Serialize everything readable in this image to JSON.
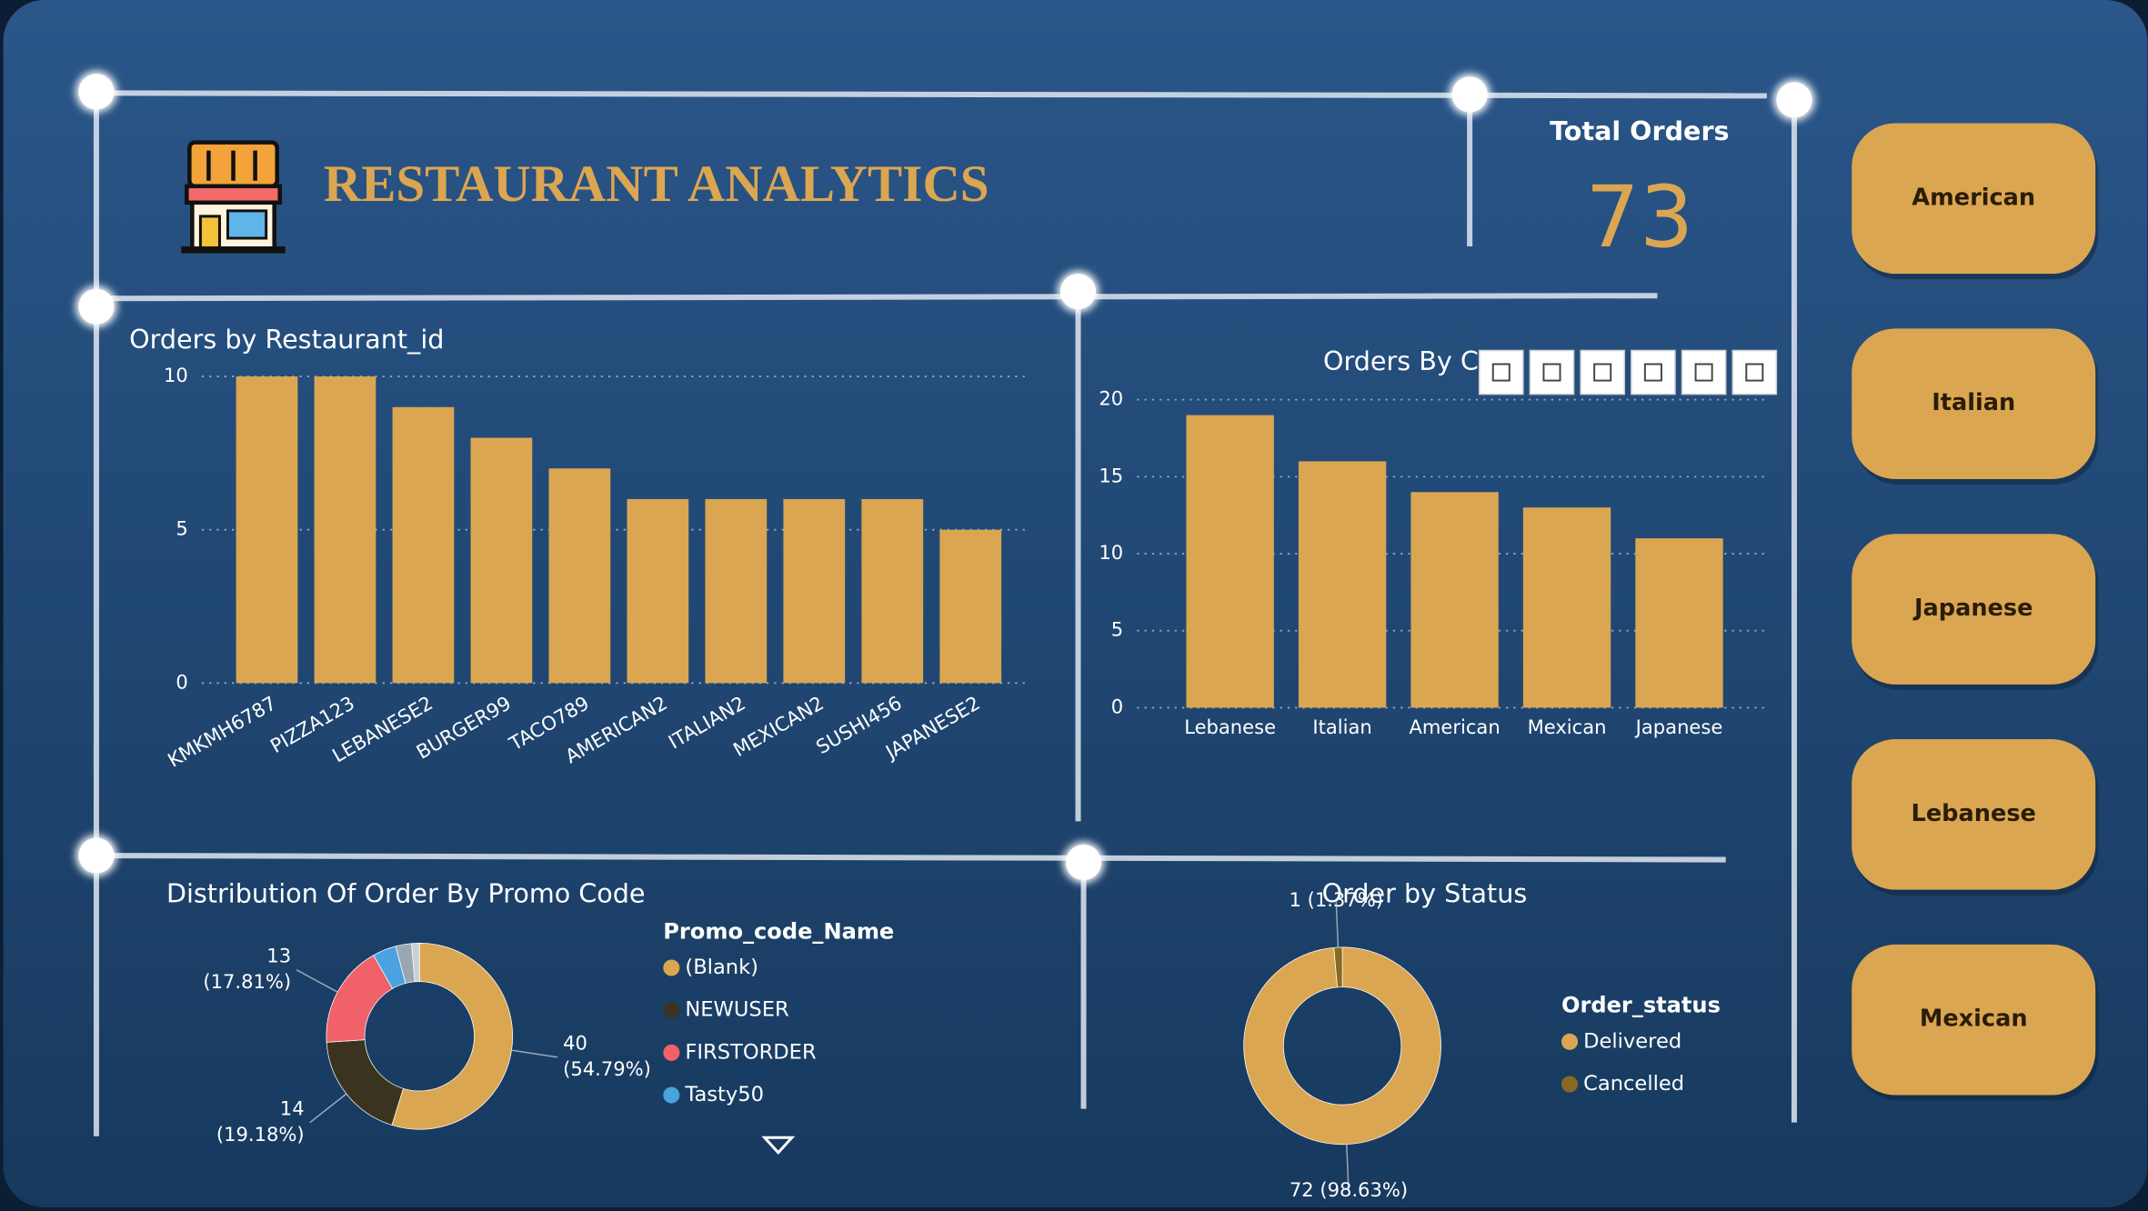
{
  "header": {
    "title": "RESTAURANT ANALYTICS"
  },
  "kpi": {
    "label": "Total Orders",
    "value": 73
  },
  "buttons": [
    "American",
    "Italian",
    "Japanese",
    "Lebanese",
    "Mexican"
  ],
  "chart_data": [
    {
      "type": "bar",
      "title": "Orders by Restaurant_id",
      "categories": [
        "KMKMH6787",
        "PIZZA123",
        "LEBANESE2",
        "BURGER99",
        "TACO789",
        "AMERICAN2",
        "ITALIAN2",
        "MEXICAN2",
        "SUSHI456",
        "JAPANESE2"
      ],
      "values": [
        10,
        10,
        9,
        8,
        7,
        6,
        6,
        6,
        6,
        5
      ],
      "color": "#dba651",
      "ylim": [
        0,
        10
      ],
      "yticks": [
        0,
        5,
        10
      ],
      "grid": true
    },
    {
      "type": "bar",
      "title": "Orders By Cu",
      "categories": [
        "Lebanese",
        "Italian",
        "American",
        "Mexican",
        "Japanese"
      ],
      "values": [
        19,
        16,
        14,
        13,
        11
      ],
      "color": "#dba651",
      "ylim": [
        0,
        20
      ],
      "yticks": [
        0,
        5,
        10,
        15,
        20
      ],
      "grid": true
    },
    {
      "type": "donut",
      "title": "Distribution Of Order By Promo Code",
      "legend_title": "Promo_code_Name",
      "categories": [
        "(Blank)",
        "NEWUSER",
        "FIRSTORDER",
        "Tasty50",
        null,
        null
      ],
      "values": [
        40,
        14,
        13,
        3,
        2,
        1
      ],
      "value_labels": [
        [
          "40",
          "(54.79%)"
        ],
        [
          "14",
          "(19.18%)"
        ],
        [
          "13",
          "(17.81%)"
        ],
        null,
        null,
        null
      ],
      "colors": [
        "#dba651",
        "#3a3320",
        "#f0616a",
        "#4aa3df",
        "#9aa7b0",
        "#c8d0d6"
      ]
    },
    {
      "type": "donut",
      "title": "Order by Status",
      "legend_title": "Order_status",
      "categories": [
        "Delivered",
        "Cancelled"
      ],
      "values": [
        72,
        1
      ],
      "value_labels": [
        "72 (98.63%)",
        "1 (1.37%)"
      ],
      "colors": [
        "#dba651",
        "#8a6a20"
      ]
    }
  ]
}
